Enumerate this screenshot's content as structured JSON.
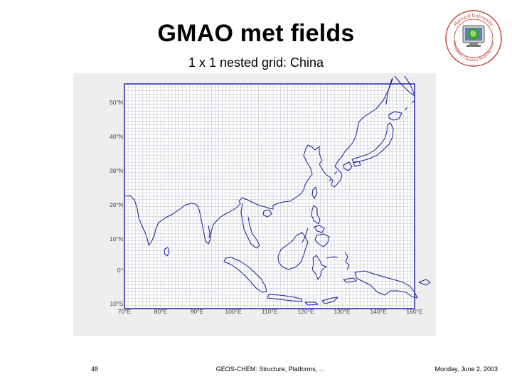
{
  "slide": {
    "title": "GMAO met fields",
    "subtitle": "1 x 1 nested grid: China",
    "footer_left": "48",
    "footer_center": "GEOS-CHEM: Structure, Platforms, ...",
    "footer_right": "Monday, June 2, 2003"
  },
  "logo": {
    "text_top": "Harvard University",
    "text_bottom": "Atmospheric Chemistry Modeling Group",
    "icon": "globe-monitor-icon",
    "colors": {
      "ring": "#c0392b",
      "globe": "#3a9f3a",
      "screen": "#5e7fb8"
    }
  },
  "map": {
    "region": "China nested grid",
    "lon_range": [
      70,
      150
    ],
    "lat_range": [
      -11,
      55
    ],
    "grid_resolution_deg": 1,
    "lat_labels": [
      "50°N",
      "40°N",
      "30°N",
      "20°N",
      "10°N",
      "0°",
      "10°S"
    ],
    "lon_labels": [
      "70°E",
      "80°E",
      "90°E",
      "100°E",
      "110°E",
      "120°E",
      "130°E",
      "140°E",
      "150°E"
    ],
    "colors": {
      "frame": "#3030b0",
      "grid": "#b8bcc8",
      "coast": "#1a1a9a",
      "background": "#eeeeee"
    }
  }
}
